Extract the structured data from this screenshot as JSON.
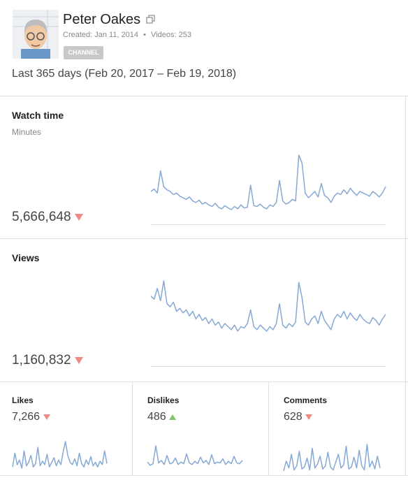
{
  "header": {
    "title": "Peter Oakes",
    "created": "Created: Jan 11, 2014",
    "separator": "•",
    "videos": "Videos: 253",
    "badge": "CHANNEL"
  },
  "period": "Last 365 days (Feb 20, 2017 – Feb 19, 2018)",
  "cards": [
    {
      "title": "Watch time",
      "unit": "Minutes",
      "value": "5,666,648",
      "trend": "down",
      "color": "#86a8d4",
      "series": [
        52,
        55,
        50,
        78,
        58,
        54,
        52,
        48,
        50,
        46,
        44,
        42,
        45,
        40,
        38,
        41,
        36,
        38,
        35,
        33,
        37,
        32,
        30,
        34,
        31,
        29,
        33,
        30,
        35,
        31,
        32,
        60,
        34,
        33,
        36,
        32,
        30,
        35,
        33,
        38,
        66,
        40,
        36,
        38,
        42,
        40,
        98,
        88,
        50,
        44,
        48,
        52,
        45,
        62,
        47,
        44,
        38,
        46,
        50,
        48,
        54,
        49,
        56,
        51,
        47,
        52,
        50,
        48,
        46,
        52,
        49,
        45,
        50,
        58
      ]
    },
    {
      "title": "Views",
      "value": "1,160,832",
      "trend": "down",
      "color": "#86a8d4",
      "series": [
        80,
        76,
        90,
        74,
        100,
        70,
        66,
        72,
        60,
        64,
        58,
        62,
        54,
        60,
        50,
        56,
        48,
        52,
        44,
        50,
        42,
        46,
        38,
        44,
        40,
        36,
        42,
        34,
        40,
        38,
        44,
        62,
        40,
        36,
        42,
        38,
        34,
        40,
        36,
        44,
        70,
        42,
        38,
        44,
        40,
        46,
        98,
        78,
        46,
        42,
        50,
        54,
        44,
        60,
        48,
        42,
        36,
        50,
        56,
        52,
        60,
        50,
        58,
        52,
        48,
        56,
        50,
        46,
        44,
        52,
        48,
        42,
        50,
        56
      ]
    },
    {
      "title": "Likes",
      "value": "7,266",
      "trend": "down",
      "color": "#86a8d4",
      "series": [
        8,
        20,
        10,
        14,
        7,
        22,
        9,
        12,
        18,
        8,
        11,
        25,
        9,
        13,
        10,
        19,
        8,
        12,
        16,
        9,
        14,
        10,
        21,
        30,
        18,
        12,
        10,
        15,
        9,
        20,
        11,
        8,
        14,
        10,
        17,
        9,
        12,
        8,
        13,
        10,
        22,
        11
      ]
    },
    {
      "title": "Dislikes",
      "value": "486",
      "trend": "up",
      "color": "#86a8d4",
      "series": [
        10,
        6,
        8,
        30,
        9,
        12,
        7,
        18,
        8,
        9,
        15,
        7,
        10,
        8,
        20,
        9,
        7,
        11,
        8,
        16,
        9,
        12,
        7,
        19,
        8,
        10,
        9,
        14,
        7,
        11,
        8,
        17,
        9,
        8,
        12
      ]
    },
    {
      "title": "Comments",
      "value": "628",
      "trend": "down",
      "color": "#86a8d4",
      "series": [
        5,
        15,
        8,
        22,
        6,
        10,
        25,
        7,
        9,
        18,
        6,
        28,
        8,
        12,
        20,
        7,
        10,
        24,
        9,
        6,
        14,
        22,
        8,
        11,
        30,
        7,
        9,
        19,
        8,
        26,
        10,
        6,
        32,
        9,
        15,
        7,
        20,
        8
      ]
    }
  ]
}
